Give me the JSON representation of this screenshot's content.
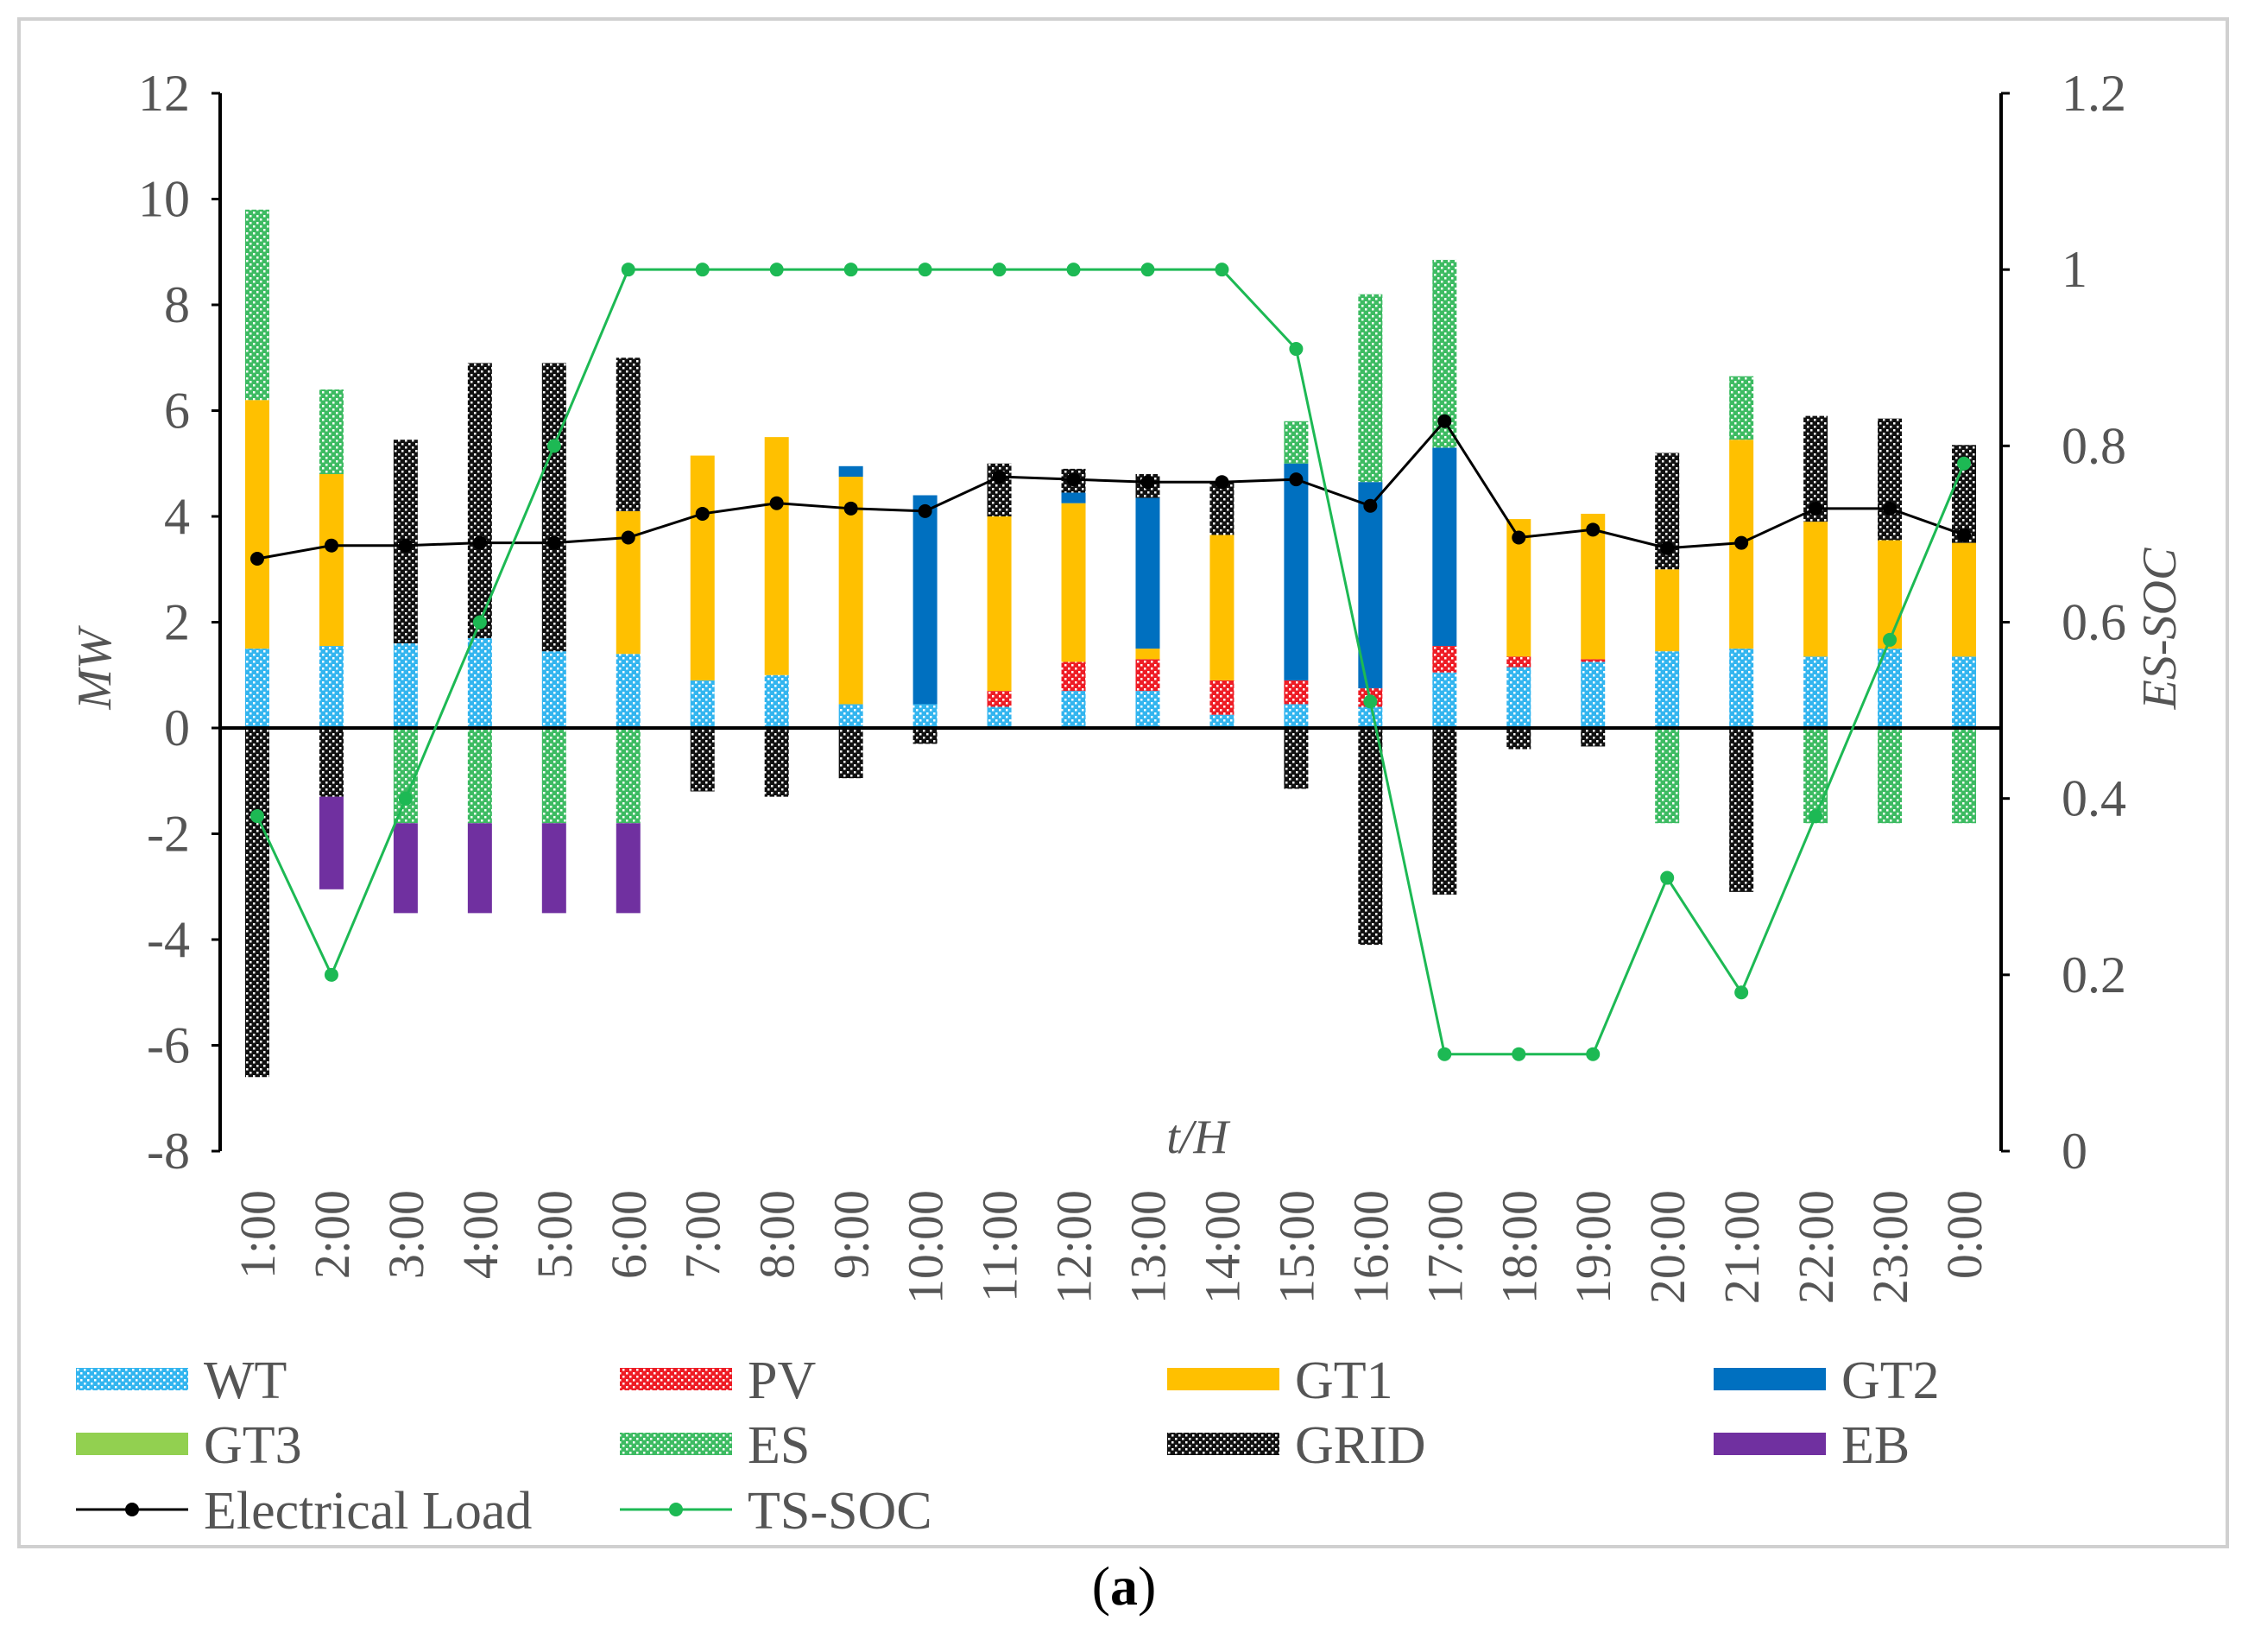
{
  "caption": {
    "open": "(",
    "letter": "a",
    "close": ")"
  },
  "chart_data": {
    "type": "stacked-bar-line",
    "xlabel": "t/H",
    "ylabel": "MW",
    "y2label": "ES-SOC",
    "ylim": [
      -8,
      12
    ],
    "y2lim": [
      0,
      1.2
    ],
    "yticks": [
      "12",
      "10",
      "8",
      "6",
      "4",
      "2",
      "0",
      "-2",
      "-4",
      "-6",
      "-8"
    ],
    "y2ticks": [
      "1.2",
      "1",
      "0.8",
      "0.6",
      "0.4",
      "0.2",
      "0"
    ],
    "categories": [
      "1:00",
      "2:00",
      "3:00",
      "4:00",
      "5:00",
      "6:00",
      "7:00",
      "8:00",
      "9:00",
      "10:00",
      "11:00",
      "12:00",
      "13:00",
      "14:00",
      "15:00",
      "16:00",
      "17:00",
      "18:00",
      "19:00",
      "20:00",
      "21:00",
      "22:00",
      "23:00",
      "0:00"
    ],
    "positive_series": [
      {
        "name": "WT",
        "key": "wt",
        "color": "#33b5ef",
        "values": [
          1.5,
          1.55,
          1.6,
          1.7,
          1.45,
          1.4,
          0.9,
          1.0,
          0.45,
          0.45,
          0.4,
          0.7,
          0.7,
          0.25,
          0.45,
          0.4,
          1.05,
          1.15,
          1.25,
          1.45,
          1.5,
          1.35,
          1.5,
          1.35
        ]
      },
      {
        "name": "PV",
        "key": "pv",
        "color": "#ee1c25",
        "values": [
          0,
          0,
          0,
          0,
          0,
          0,
          0,
          0,
          0,
          0,
          0.3,
          0.55,
          0.6,
          0.65,
          0.45,
          0.35,
          0.5,
          0.2,
          0.05,
          0,
          0,
          0,
          0,
          0
        ]
      },
      {
        "name": "GT1",
        "key": "gt1",
        "color": "#ffc000",
        "values": [
          4.7,
          3.25,
          0,
          0,
          0,
          2.7,
          4.25,
          4.5,
          4.3,
          0,
          3.3,
          3.0,
          0.2,
          2.75,
          0,
          0,
          0,
          2.6,
          2.75,
          1.55,
          3.95,
          2.55,
          2.05,
          2.15
        ]
      },
      {
        "name": "GT2",
        "key": "gt2",
        "color": "#0070c0",
        "values": [
          0,
          0,
          0,
          0,
          0,
          0,
          0,
          0,
          0.2,
          3.95,
          0,
          0.2,
          2.85,
          0,
          4.1,
          3.9,
          3.75,
          0,
          0,
          0,
          0,
          0,
          0,
          0
        ]
      },
      {
        "name": "GT3",
        "key": "gt3",
        "color": "#92d050",
        "values": [
          0,
          0,
          0,
          0,
          0,
          0,
          0,
          0,
          0,
          0,
          0,
          0,
          0,
          0,
          0,
          0,
          0,
          0,
          0,
          0,
          0,
          0,
          0,
          0
        ]
      },
      {
        "name": "ES",
        "key": "es",
        "color": "#3dbb62",
        "values": [
          3.6,
          1.6,
          0,
          0,
          0,
          0,
          0,
          0,
          0,
          0,
          0,
          0,
          0,
          0,
          0.8,
          3.55,
          3.55,
          0,
          0,
          0,
          1.2,
          0,
          0,
          0
        ]
      },
      {
        "name": "GRID",
        "key": "grid",
        "color": "#111111",
        "values": [
          0,
          0,
          3.85,
          5.2,
          5.45,
          2.9,
          0,
          0,
          0,
          0,
          1.0,
          0.45,
          0.45,
          1.0,
          0,
          0,
          0,
          0,
          0,
          2.2,
          0,
          2.0,
          2.3,
          1.85
        ]
      }
    ],
    "negative_series": [
      {
        "name": "ES",
        "key": "es",
        "color": "#3dbb62",
        "values": [
          0,
          0,
          -1.8,
          -1.8,
          -1.8,
          -1.8,
          0,
          0,
          0,
          0,
          0,
          0,
          0,
          0,
          0,
          0,
          0,
          0,
          0,
          -1.8,
          0,
          -1.8,
          -1.8,
          -1.8
        ]
      },
      {
        "name": "GRID",
        "key": "grid",
        "color": "#111111",
        "values": [
          -6.6,
          -1.3,
          0,
          0,
          0,
          0,
          -1.2,
          -1.3,
          -0.95,
          -0.3,
          0,
          0,
          0,
          0,
          -1.15,
          -4.1,
          -3.15,
          -0.4,
          -0.35,
          0,
          -3.1,
          0,
          0,
          0
        ]
      },
      {
        "name": "EB",
        "key": "eb",
        "color": "#7030a0",
        "values": [
          0,
          -1.75,
          -1.7,
          -1.7,
          -1.7,
          -1.7,
          0,
          0,
          0,
          0,
          0,
          0,
          0,
          0,
          0,
          0,
          0,
          0,
          0,
          0,
          0,
          0,
          0,
          0
        ]
      }
    ],
    "lines": [
      {
        "name": "Electrical Load",
        "key": "load",
        "axis": "left",
        "color": "#000000",
        "values": [
          3.2,
          3.45,
          3.45,
          3.5,
          3.5,
          3.6,
          4.05,
          4.25,
          4.15,
          4.1,
          4.75,
          4.7,
          4.65,
          4.65,
          4.7,
          4.2,
          5.8,
          3.6,
          3.75,
          3.4,
          3.5,
          4.15,
          4.15,
          3.65
        ]
      },
      {
        "name": "TS-SOC",
        "key": "soc",
        "axis": "right",
        "color": "#1db954",
        "values": [
          0.38,
          0.2,
          0.4,
          0.6,
          0.8,
          1.0,
          1.0,
          1.0,
          1.0,
          1.0,
          1.0,
          1.0,
          1.0,
          1.0,
          0.91,
          0.51,
          0.11,
          0.11,
          0.11,
          0.31,
          0.18,
          0.38,
          0.58,
          0.78
        ]
      }
    ],
    "legend": {
      "position": "bottom",
      "items": [
        {
          "label": "WT",
          "key": "wt",
          "kind": "patch-dots",
          "color": "#33b5ef"
        },
        {
          "label": "PV",
          "key": "pv",
          "kind": "patch-dots",
          "color": "#ee1c25"
        },
        {
          "label": "GT1",
          "key": "gt1",
          "kind": "patch",
          "color": "#ffc000"
        },
        {
          "label": "GT2",
          "key": "gt2",
          "kind": "patch",
          "color": "#0070c0"
        },
        {
          "label": "GT3",
          "key": "gt3",
          "kind": "patch",
          "color": "#92d050"
        },
        {
          "label": "ES",
          "key": "es",
          "kind": "patch-dots",
          "color": "#3dbb62"
        },
        {
          "label": "GRID",
          "key": "grid",
          "kind": "patch-dots",
          "color": "#111111"
        },
        {
          "label": "EB",
          "key": "eb",
          "kind": "patch",
          "color": "#7030a0"
        },
        {
          "label": "Electrical Load",
          "key": "load",
          "kind": "line",
          "color": "#000000"
        },
        {
          "label": "TS-SOC",
          "key": "soc",
          "kind": "line",
          "color": "#1db954"
        }
      ]
    }
  }
}
